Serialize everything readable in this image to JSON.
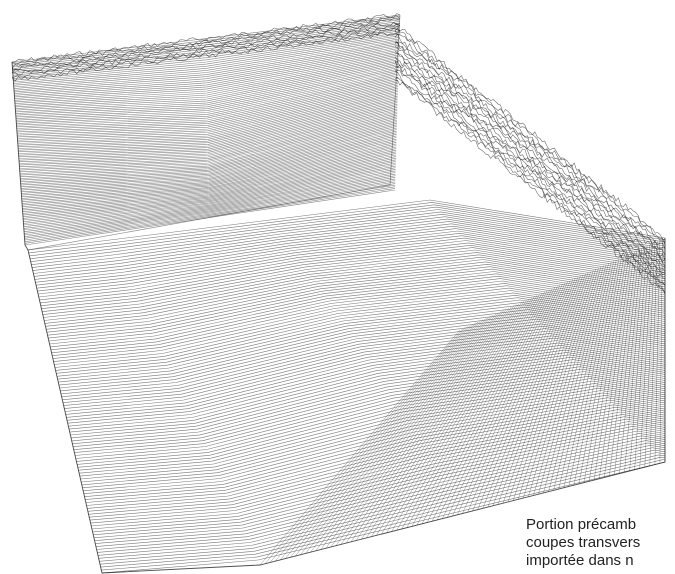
{
  "caption": {
    "lines": [
      "Portion précamb",
      "coupes transvers",
      "importée dans n"
    ]
  },
  "figure": {
    "line_color": "#1e1e1e",
    "background": "#ffffff"
  }
}
